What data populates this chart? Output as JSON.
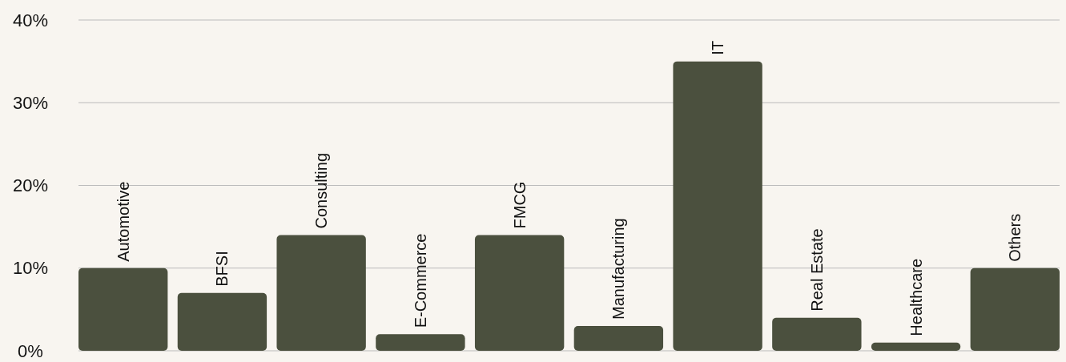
{
  "chart_data": {
    "type": "bar",
    "categories": [
      "Automotive",
      "BFSI",
      "Consulting",
      "E-Commerce",
      "FMCG",
      "Manufacturing",
      "IT",
      "Real Estate",
      "Healthcare",
      "Others"
    ],
    "values": [
      10,
      7,
      14,
      2,
      14,
      3,
      35,
      4,
      1,
      10
    ],
    "color": "#4b503e",
    "ylim": [
      0,
      40
    ],
    "yticks": [
      {
        "value": 0,
        "label": "0%"
      },
      {
        "value": 10,
        "label": "10%"
      },
      {
        "value": 20,
        "label": "20%"
      },
      {
        "value": 30,
        "label": "30%"
      },
      {
        "value": 40,
        "label": "40%"
      }
    ],
    "grid": "y"
  }
}
